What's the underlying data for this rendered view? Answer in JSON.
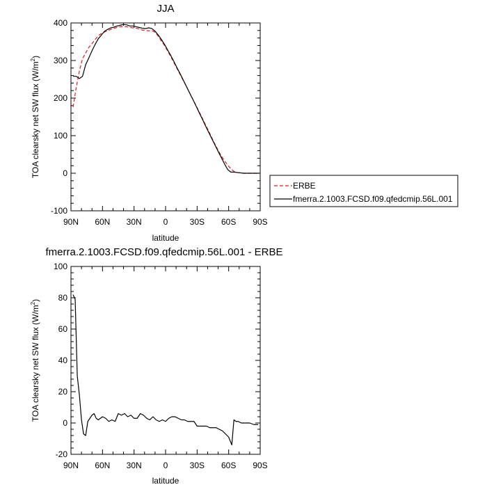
{
  "chart_data": [
    {
      "type": "line",
      "title": "JJA",
      "xlabel": "latitude",
      "ylabel": "TOA clearsky net SW flux (W/m",
      "ylabel_sup": "2",
      "ylabel_close": ")",
      "xlim": [
        90,
        -90
      ],
      "ylim": [
        -100,
        400
      ],
      "x_ticks": [
        {
          "value": 90,
          "label": "90N"
        },
        {
          "value": 60,
          "label": "60N"
        },
        {
          "value": 30,
          "label": "30N"
        },
        {
          "value": 0,
          "label": "0"
        },
        {
          "value": -30,
          "label": "30S"
        },
        {
          "value": -60,
          "label": "60S"
        },
        {
          "value": -90,
          "label": "90S"
        }
      ],
      "y_ticks": [
        {
          "value": 400,
          "label": "400"
        },
        {
          "value": 300,
          "label": "300"
        },
        {
          "value": 200,
          "label": "200"
        },
        {
          "value": 100,
          "label": "100"
        },
        {
          "value": 0,
          "label": "0"
        },
        {
          "value": -100,
          "label": "-100"
        }
      ],
      "legend": "right",
      "series": [
        {
          "name": "ERBE",
          "color": "#e41a1c",
          "dash": true,
          "x": [
            88,
            85,
            82,
            79,
            76,
            73,
            70,
            67,
            64,
            61,
            58,
            55,
            52,
            49,
            46,
            43,
            40,
            37,
            34,
            31,
            28,
            25,
            22,
            19,
            16,
            13,
            10,
            7,
            4,
            1,
            -2,
            -5,
            -8,
            -11,
            -14,
            -17,
            -20,
            -23,
            -26,
            -29,
            -32,
            -35,
            -38,
            -41,
            -44,
            -47,
            -50,
            -53,
            -56,
            -59,
            -62,
            -65,
            -68,
            -71,
            -74,
            -77,
            -80,
            -83,
            -86,
            -89
          ],
          "y": [
            176,
            228,
            272,
            305,
            320,
            335,
            345,
            356,
            366,
            372,
            376,
            380,
            383,
            386,
            388,
            390,
            390,
            390,
            388,
            387,
            386,
            384,
            381,
            380,
            379,
            380,
            375,
            365,
            352,
            340,
            325,
            310,
            294,
            278,
            262,
            246,
            230,
            213,
            197,
            180,
            163,
            146,
            129,
            112,
            94,
            77,
            61,
            46,
            33,
            22,
            12,
            5,
            2,
            1,
            0,
            0,
            0,
            0,
            0,
            0
          ]
        },
        {
          "name": "fmerra.2.1003.FCSD.f09.qfedcmip.56L.001",
          "color": "#000000",
          "dash": false,
          "x": [
            88,
            85,
            82,
            79,
            76,
            73,
            70,
            67,
            64,
            61,
            58,
            55,
            52,
            49,
            46,
            43,
            40,
            37,
            34,
            31,
            28,
            25,
            22,
            19,
            16,
            13,
            10,
            7,
            4,
            1,
            -2,
            -5,
            -8,
            -11,
            -14,
            -17,
            -20,
            -23,
            -26,
            -29,
            -32,
            -35,
            -38,
            -41,
            -44,
            -47,
            -50,
            -53,
            -56,
            -59,
            -62,
            -65,
            -68,
            -71,
            -74,
            -77,
            -80,
            -83,
            -86,
            -89
          ],
          "y": [
            258,
            258,
            252,
            258,
            289,
            307,
            326,
            343,
            358,
            368,
            378,
            383,
            387,
            389,
            392,
            394,
            396,
            395,
            392,
            392,
            390,
            388,
            386,
            385,
            387,
            385,
            378,
            368,
            356,
            343,
            328,
            313,
            297,
            280,
            264,
            247,
            230,
            213,
            196,
            179,
            161,
            144,
            126,
            109,
            92,
            75,
            58,
            42,
            25,
            10,
            3,
            3,
            2,
            1,
            0,
            0,
            0,
            0,
            0,
            0
          ]
        }
      ]
    },
    {
      "type": "line",
      "title": "fmerra.2.1003.FCSD.f09.qfedcmip.56L.001 - ERBE",
      "xlabel": "latitude",
      "ylabel": "TOA clearsky net SW flux (W/m",
      "ylabel_sup": "2",
      "ylabel_close": ")",
      "xlim": [
        90,
        -90
      ],
      "ylim": [
        -20,
        100
      ],
      "x_ticks": [
        {
          "value": 90,
          "label": "90N"
        },
        {
          "value": 60,
          "label": "60N"
        },
        {
          "value": 30,
          "label": "30N"
        },
        {
          "value": 0,
          "label": "0"
        },
        {
          "value": -30,
          "label": "30S"
        },
        {
          "value": -60,
          "label": "60S"
        },
        {
          "value": -90,
          "label": "90S"
        }
      ],
      "y_ticks": [
        {
          "value": 100,
          "label": "100"
        },
        {
          "value": 80,
          "label": "80"
        },
        {
          "value": 60,
          "label": "60"
        },
        {
          "value": 40,
          "label": "40"
        },
        {
          "value": 20,
          "label": "20"
        },
        {
          "value": 0,
          "label": "0"
        },
        {
          "value": -20,
          "label": "-20"
        }
      ],
      "series": [
        {
          "color": "#000000",
          "dash": false,
          "x": [
            88,
            86,
            84,
            82,
            80,
            78,
            76,
            74,
            72,
            70,
            68,
            66,
            64,
            62,
            60,
            57,
            54,
            51,
            48,
            45,
            42,
            39,
            36,
            33,
            30,
            27,
            24,
            21,
            18,
            15,
            12,
            9,
            6,
            3,
            0,
            -3,
            -6,
            -9,
            -12,
            -15,
            -18,
            -21,
            -24,
            -27,
            -30,
            -33,
            -36,
            -39,
            -42,
            -45,
            -48,
            -51,
            -54,
            -57,
            -60,
            -63,
            -65,
            -67,
            -69,
            -72,
            -76,
            -80,
            -84,
            -88
          ],
          "y": [
            82,
            79,
            30,
            18,
            2,
            -7,
            -8,
            1,
            3,
            5,
            6,
            3,
            2,
            3,
            4,
            3,
            1,
            2,
            1,
            6,
            5,
            6,
            4,
            5,
            3,
            3,
            6,
            5,
            3,
            2,
            4,
            2,
            1,
            2,
            1,
            3,
            4,
            4,
            3,
            2,
            2,
            1,
            1,
            1,
            -2,
            -2,
            -2,
            -2,
            -3,
            -3,
            -3,
            -4,
            -5,
            -7,
            -9,
            -14,
            2,
            1,
            1,
            0,
            0,
            0,
            -1,
            -1
          ]
        }
      ]
    }
  ]
}
